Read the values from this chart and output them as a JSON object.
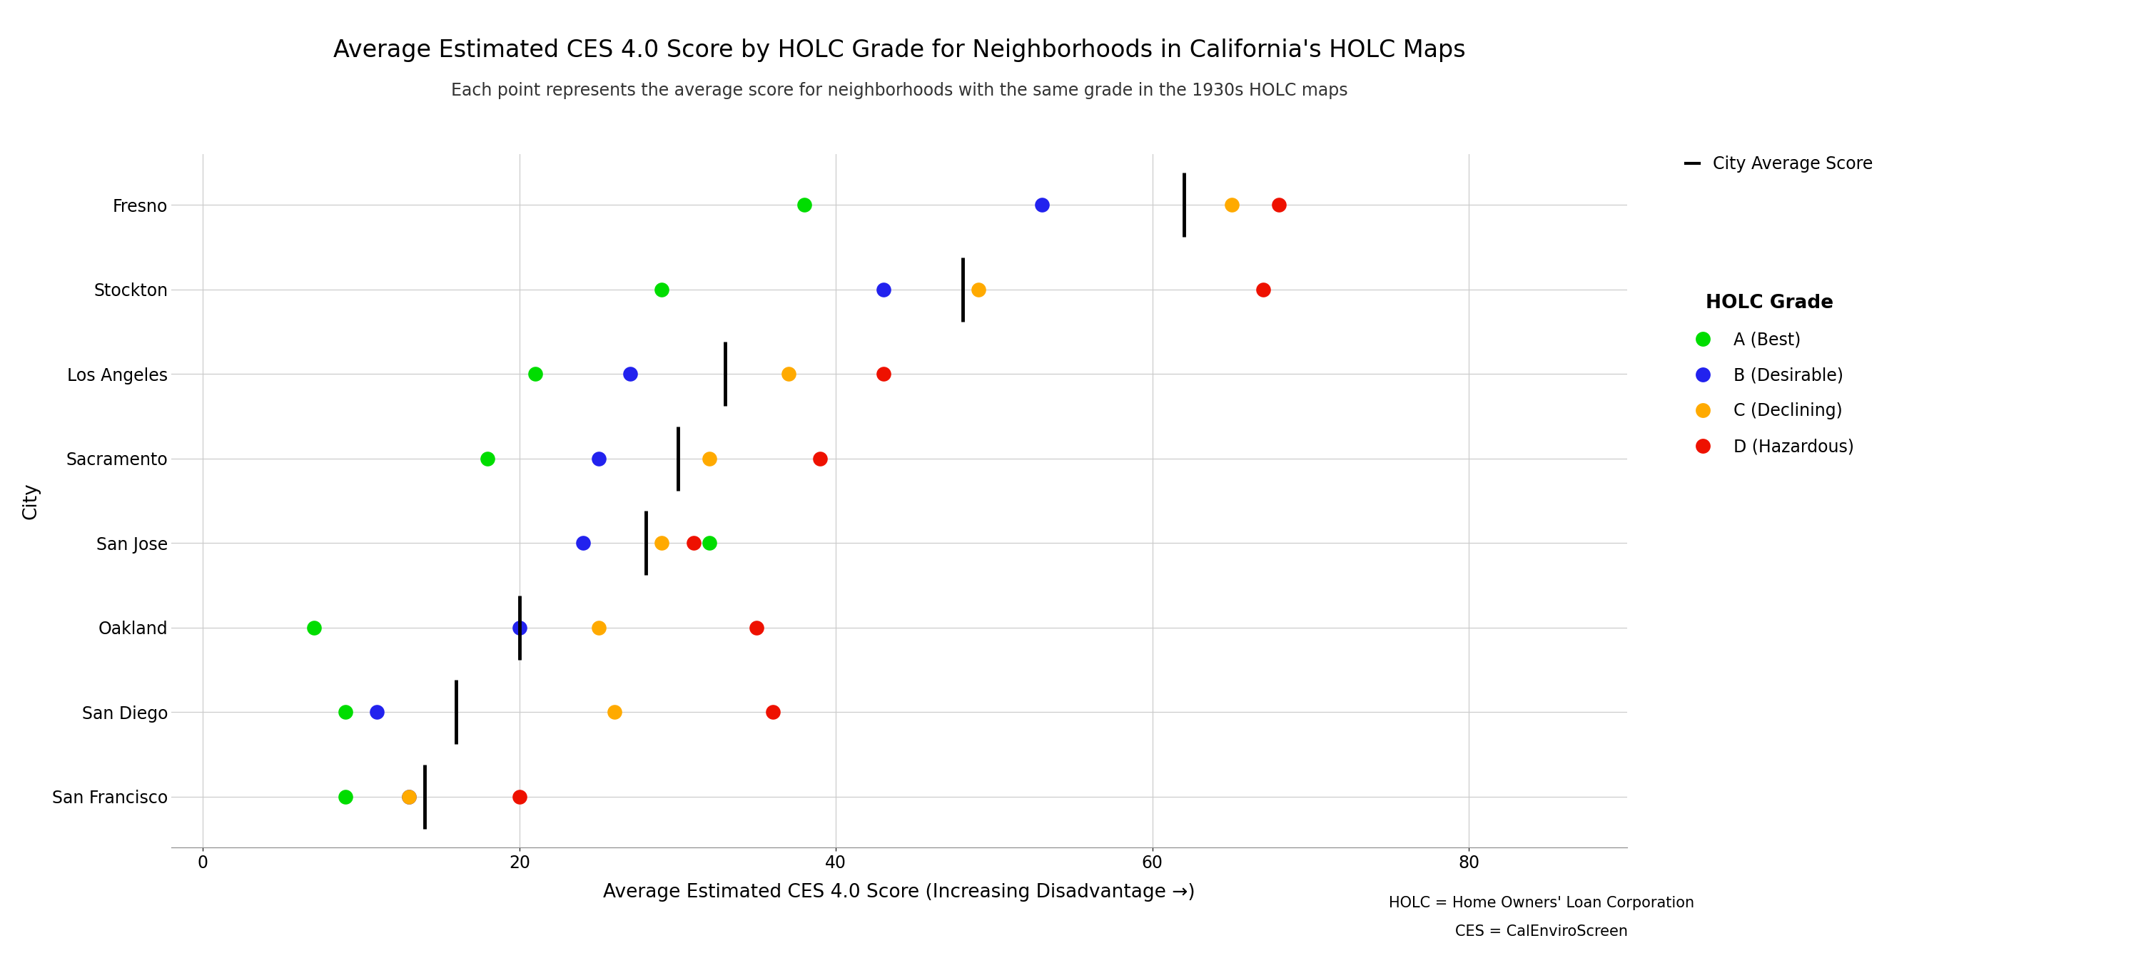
{
  "title": "Average Estimated CES 4.0 Score by HOLC Grade for Neighborhoods in California's HOLC Maps",
  "subtitle": "Each point represents the average score for neighborhoods with the same grade in the 1930s HOLC maps",
  "xlabel": "Average Estimated CES 4.0 Score (Increasing Disadvantage →)",
  "ylabel": "City",
  "footnote1": "HOLC = Home Owners' Loan Corporation",
  "footnote2": "CES = CalEnviroScreen",
  "background_color": "#ffffff",
  "grid_color": "#cccccc",
  "cities": [
    "Fresno",
    "Stockton",
    "Los Angeles",
    "Sacramento",
    "San Jose",
    "Oakland",
    "San Diego",
    "San Francisco"
  ],
  "grades": [
    "A",
    "B",
    "C",
    "D"
  ],
  "grade_colors": {
    "A": "#00dd00",
    "B": "#2222ee",
    "C": "#ffaa00",
    "D": "#ee1100"
  },
  "grade_labels": {
    "A": "A (Best)",
    "B": "B (Desirable)",
    "C": "C (Declining)",
    "D": "D (Hazardous)"
  },
  "data": {
    "Fresno": {
      "A": 38,
      "B": 53,
      "C": 65,
      "D": 68
    },
    "Stockton": {
      "A": 29,
      "B": 43,
      "C": 49,
      "D": 67
    },
    "Los Angeles": {
      "A": 21,
      "B": 27,
      "C": 37,
      "D": 43
    },
    "Sacramento": {
      "A": 18,
      "B": 25,
      "C": 32,
      "D": 39
    },
    "San Jose": {
      "A": 32,
      "B": 24,
      "C": 29,
      "D": 31
    },
    "Oakland": {
      "A": 7,
      "B": 20,
      "C": 25,
      "D": 35
    },
    "San Diego": {
      "A": 9,
      "B": 11,
      "C": 26,
      "D": 36
    },
    "San Francisco": {
      "A": 9,
      "B": 13,
      "C": 13,
      "D": 20
    }
  },
  "city_avg": {
    "Fresno": 62,
    "Stockton": 48,
    "Los Angeles": 33,
    "Sacramento": 30,
    "San Jose": 28,
    "Oakland": 20,
    "San Diego": 16,
    "San Francisco": 14
  },
  "xlim": [
    -2,
    90
  ],
  "xticks": [
    0,
    20,
    40,
    60,
    80
  ],
  "marker_size": 220,
  "title_fontsize": 24,
  "subtitle_fontsize": 17,
  "subtitle_color": "#333333",
  "axis_label_fontsize": 19,
  "tick_fontsize": 17,
  "legend_fontsize": 17,
  "legend_title_fontsize": 19,
  "city_avg_bar_color": "#000000",
  "city_avg_bar_height": 0.38
}
